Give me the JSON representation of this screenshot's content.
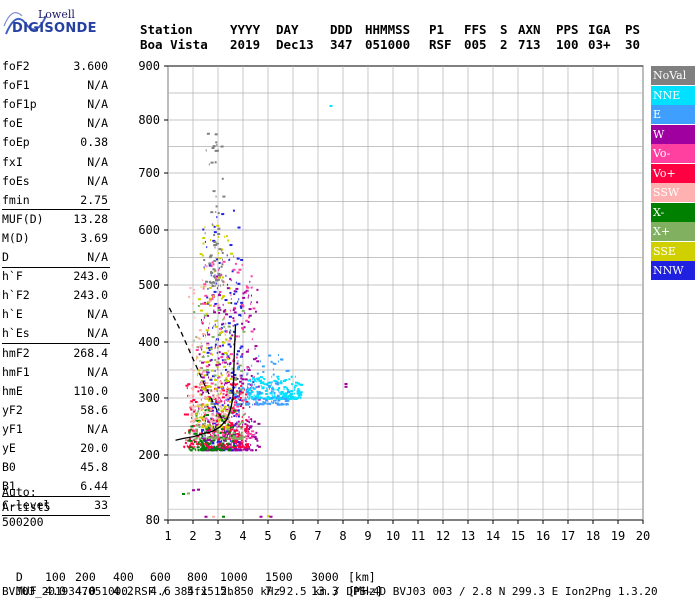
{
  "logo": {
    "line1": "Lowell",
    "line2": "DIGISONDE"
  },
  "header": {
    "row1": [
      "Station",
      "YYYY",
      "DAY",
      "DDD",
      "HHMMSS",
      "P1",
      "FFS",
      "S",
      "AXN",
      "PPS",
      "IGA",
      "PS"
    ],
    "row2": [
      "Boa Vista",
      "2019",
      "Dec13",
      "347",
      "051000",
      "RSF",
      "005",
      "2",
      "713",
      "100",
      "03+",
      "30"
    ]
  },
  "params": {
    "group1": [
      {
        "label": "foF2",
        "value": "3.600"
      },
      {
        "label": "foF1",
        "value": "N/A"
      },
      {
        "label": "foF1p",
        "value": "N/A"
      },
      {
        "label": "foE",
        "value": "N/A"
      },
      {
        "label": "foEp",
        "value": "0.38"
      },
      {
        "label": "fxI",
        "value": "N/A"
      },
      {
        "label": "foEs",
        "value": "N/A"
      },
      {
        "label": "fmin",
        "value": "2.75"
      }
    ],
    "group2": [
      {
        "label": "MUF(D)",
        "value": "13.28"
      },
      {
        "label": "M(D)",
        "value": "3.69"
      },
      {
        "label": "D",
        "value": "N/A"
      }
    ],
    "group3": [
      {
        "label": "h`F",
        "value": "243.0"
      },
      {
        "label": "h`F2",
        "value": "243.0"
      },
      {
        "label": "h`E",
        "value": "N/A"
      },
      {
        "label": "h`Es",
        "value": "N/A"
      }
    ],
    "group4": [
      {
        "label": "hmF2",
        "value": "268.4"
      },
      {
        "label": "hmF1",
        "value": "N/A"
      },
      {
        "label": "hmE",
        "value": "110.0"
      },
      {
        "label": "yF2",
        "value": "58.6"
      },
      {
        "label": "yF1",
        "value": "N/A"
      },
      {
        "label": "yE",
        "value": "20.0"
      },
      {
        "label": "B0",
        "value": "45.8"
      },
      {
        "label": "B1",
        "value": "6.44"
      }
    ],
    "group5": [
      {
        "label": "C-level",
        "value": "33"
      }
    ]
  },
  "auto": {
    "line1": "Auto:",
    "line2": "Artist5",
    "line3": "500200"
  },
  "legend": [
    {
      "label": "NoVal",
      "color": "#808080"
    },
    {
      "label": "NNE",
      "color": "#00e0ff"
    },
    {
      "label": "E",
      "color": "#3f9fff"
    },
    {
      "label": "W",
      "color": "#a000a0"
    },
    {
      "label": "Vo-",
      "color": "#ff40a0"
    },
    {
      "label": "Vo+",
      "color": "#ff0040"
    },
    {
      "label": "SSW",
      "color": "#ffb0b0"
    },
    {
      "label": "X-",
      "color": "#008000"
    },
    {
      "label": "X+",
      "color": "#80b060"
    },
    {
      "label": "SSE",
      "color": "#d0d000"
    },
    {
      "label": "NNW",
      "color": "#2020e0"
    }
  ],
  "footer": {
    "d_label": "D",
    "d_values": [
      "100",
      "200",
      "400",
      "600",
      "800",
      "1000",
      "1500",
      "3000"
    ],
    "d_unit": "[km]",
    "muf_label": "MUF",
    "muf_values": [
      "4.0",
      "4.0",
      "4.2",
      "4.6",
      "5.1",
      "5.8",
      "7.9",
      "13.3"
    ],
    "muf_unit": "[MHz]",
    "info": "BVJ03_2019347051000.RSF / 384fx512h 50 kHz 2.5 km / DPS-4D BVJ03 003 / 2.8 N 299.3 E Ion2Png 1.3.20"
  },
  "chart_data": {
    "type": "scatter",
    "xlim": [
      1,
      20
    ],
    "ylim": [
      80,
      900
    ],
    "xticks": [
      "1",
      "2",
      "3",
      "4",
      "5",
      "6",
      "7",
      "8",
      "9",
      "10",
      "11",
      "12",
      "13",
      "14",
      "15",
      "16",
      "17",
      "18",
      "19",
      "20"
    ],
    "yticks": [
      "80",
      "200",
      "300",
      "400",
      "500",
      "600",
      "700",
      "800",
      "900"
    ],
    "grid": true,
    "legend_position": "right",
    "trace_black": [
      [
        1.3,
        226
      ],
      [
        1.6,
        229
      ],
      [
        2.0,
        232
      ],
      [
        2.4,
        237
      ],
      [
        2.8,
        242
      ],
      [
        3.1,
        250
      ],
      [
        3.35,
        262
      ],
      [
        3.5,
        280
      ],
      [
        3.6,
        300
      ],
      [
        3.62,
        330
      ],
      [
        3.65,
        380
      ],
      [
        3.7,
        430
      ]
    ],
    "trace_dashed": [
      [
        1.05,
        460
      ],
      [
        1.5,
        420
      ],
      [
        2.0,
        370
      ],
      [
        2.5,
        320
      ],
      [
        3.0,
        275
      ],
      [
        3.3,
        255
      ]
    ],
    "clusters": [
      {
        "series": "NNW",
        "xmin": 2.3,
        "xmax": 3.9,
        "ymin": 210,
        "ymax": 640,
        "n": 260
      },
      {
        "series": "W",
        "xmin": 2.2,
        "xmax": 4.6,
        "ymin": 210,
        "ymax": 520,
        "n": 300
      },
      {
        "series": "Vo+",
        "xmin": 1.6,
        "xmax": 4.2,
        "ymin": 215,
        "ymax": 330,
        "n": 260
      },
      {
        "series": "Vo-",
        "xmin": 2.0,
        "xmax": 4.4,
        "ymin": 230,
        "ymax": 560,
        "n": 160
      },
      {
        "series": "NNE",
        "xmin": 4.1,
        "xmax": 6.3,
        "ymin": 300,
        "ymax": 340,
        "n": 230
      },
      {
        "series": "E",
        "xmin": 3.6,
        "xmax": 5.8,
        "ymin": 290,
        "ymax": 380,
        "n": 120
      },
      {
        "series": "X-",
        "xmin": 1.8,
        "xmax": 3.6,
        "ymin": 210,
        "ymax": 290,
        "n": 140
      },
      {
        "series": "X+",
        "xmin": 2.0,
        "xmax": 4.0,
        "ymin": 230,
        "ymax": 480,
        "n": 140
      },
      {
        "series": "SSE",
        "xmin": 2.1,
        "xmax": 3.5,
        "ymin": 250,
        "ymax": 640,
        "n": 150
      },
      {
        "series": "SSW",
        "xmin": 1.8,
        "xmax": 3.4,
        "ymin": 260,
        "ymax": 520,
        "n": 110
      },
      {
        "series": "NoVal",
        "xmin": 2.4,
        "xmax": 3.2,
        "ymin": 500,
        "ymax": 790,
        "n": 70
      }
    ],
    "isolated_points": [
      {
        "series": "NNE",
        "x": 7.5,
        "y": 826
      },
      {
        "series": "W",
        "x": 8.1,
        "y": 320
      },
      {
        "series": "W",
        "x": 8.1,
        "y": 325
      },
      {
        "series": "X-",
        "x": 1.6,
        "y": 128
      },
      {
        "series": "X+",
        "x": 1.8,
        "y": 129
      },
      {
        "series": "W",
        "x": 2.0,
        "y": 135
      },
      {
        "series": "W",
        "x": 2.2,
        "y": 136
      },
      {
        "series": "W",
        "x": 2.5,
        "y": 86
      },
      {
        "series": "SSW",
        "x": 2.8,
        "y": 86
      },
      {
        "series": "X-",
        "x": 3.2,
        "y": 86
      },
      {
        "series": "W",
        "x": 4.7,
        "y": 86
      },
      {
        "series": "SSE",
        "x": 5.0,
        "y": 87
      },
      {
        "series": "W",
        "x": 5.1,
        "y": 86
      }
    ]
  }
}
